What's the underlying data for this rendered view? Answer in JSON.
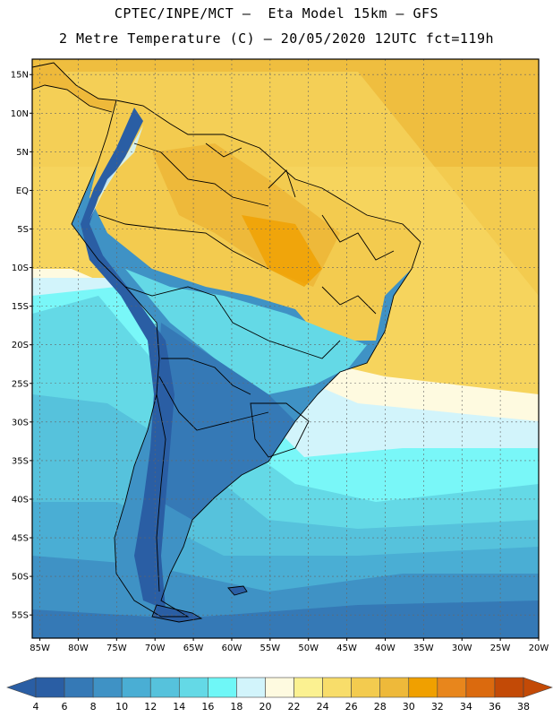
{
  "header": {
    "line1": "CPTEC/INPE/MCT –  Eta Model 15km – GFS",
    "line2": "2 Metre Temperature (C) – 20/05/2020 12UTC fct=119h"
  },
  "map": {
    "lon_range": [
      -86,
      -20
    ],
    "lat_range": [
      -58,
      17
    ],
    "lat_ticks": [
      {
        "value": 15,
        "label": "15N"
      },
      {
        "value": 10,
        "label": "10N"
      },
      {
        "value": 5,
        "label": "5N"
      },
      {
        "value": 0,
        "label": "EQ"
      },
      {
        "value": -5,
        "label": "5S"
      },
      {
        "value": -10,
        "label": "10S"
      },
      {
        "value": -15,
        "label": "15S"
      },
      {
        "value": -20,
        "label": "20S"
      },
      {
        "value": -25,
        "label": "25S"
      },
      {
        "value": -30,
        "label": "30S"
      },
      {
        "value": -35,
        "label": "35S"
      },
      {
        "value": -40,
        "label": "40S"
      },
      {
        "value": -45,
        "label": "45S"
      },
      {
        "value": -50,
        "label": "50S"
      },
      {
        "value": -55,
        "label": "55S"
      }
    ],
    "lon_ticks": [
      {
        "value": -85,
        "label": "85W"
      },
      {
        "value": -80,
        "label": "80W"
      },
      {
        "value": -75,
        "label": "75W"
      },
      {
        "value": -70,
        "label": "70W"
      },
      {
        "value": -65,
        "label": "65W"
      },
      {
        "value": -60,
        "label": "60W"
      },
      {
        "value": -55,
        "label": "55W"
      },
      {
        "value": -50,
        "label": "50W"
      },
      {
        "value": -45,
        "label": "45W"
      },
      {
        "value": -40,
        "label": "40W"
      },
      {
        "value": -35,
        "label": "35W"
      },
      {
        "value": -30,
        "label": "30W"
      },
      {
        "value": -25,
        "label": "25W"
      },
      {
        "value": -20,
        "label": "20W"
      }
    ],
    "grid": true
  },
  "colorbar": {
    "colors": [
      "#2a5ea4",
      "#3579b6",
      "#3f92c5",
      "#4aaed4",
      "#56c2dc",
      "#64d9e6",
      "#6ff7f7",
      "#d2f4fb",
      "#fefae0",
      "#fbf191",
      "#f8dd6a",
      "#f3cb4f",
      "#eeb93a",
      "#f0a000",
      "#e8861c",
      "#db6a0e",
      "#c34a06"
    ],
    "under_color": "#2a5ea4",
    "over_color": "#c34a06",
    "labels": [
      "4",
      "6",
      "8",
      "10",
      "12",
      "14",
      "16",
      "18",
      "20",
      "22",
      "24",
      "26",
      "28",
      "30",
      "32",
      "34",
      "36",
      "38"
    ]
  }
}
